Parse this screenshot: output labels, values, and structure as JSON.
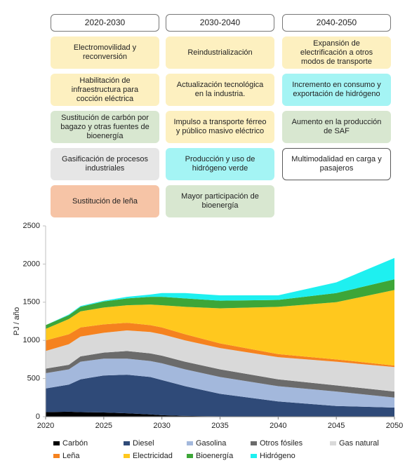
{
  "timeline": {
    "columns": [
      {
        "period": "2020-2030",
        "items": [
          {
            "text": "Electromovilidad y reconversión",
            "color": "#fdf0c0"
          },
          {
            "text": "Habilitación de infraestructura para cocción eléctrica",
            "color": "#fdf0c0"
          },
          {
            "text": "Sustitución de carbón por bagazo y otras fuentes de bioenergía",
            "color": "#d8e7d0"
          },
          {
            "text": "Gasificación de procesos industriales",
            "color": "#e6e6e6"
          },
          {
            "text": "Sustitución de leña",
            "color": "#f6c4a6"
          }
        ]
      },
      {
        "period": "2030-2040",
        "items": [
          {
            "text": "Reindustrialización",
            "color": "#fdf0c0"
          },
          {
            "text": "Actualización tecnológica en la industria.",
            "color": "#fdf0c0"
          },
          {
            "text": "Impulso a transporte férreo y público masivo eléctrico",
            "color": "#fdf0c0"
          },
          {
            "text": "Producción y uso de hidrógeno verde",
            "color": "#a4f4f4"
          },
          {
            "text": "Mayor participación de bioenergía",
            "color": "#d8e7d0"
          }
        ]
      },
      {
        "period": "2040-2050",
        "items": [
          {
            "text": "Expansión de electrificación a otros modos de transporte",
            "color": "#fdf0c0"
          },
          {
            "text": "Incremento en consumo y exportación de hidrógeno",
            "color": "#a4f4f4"
          },
          {
            "text": "Aumento en la producción de SAF",
            "color": "#d8e7d0"
          },
          {
            "text": "Multimodalidad en carga y pasajeros",
            "color": "#ffffff",
            "border": "#595959"
          }
        ]
      }
    ]
  },
  "chart_data": {
    "type": "stacked_area",
    "y_label": "PJ / año",
    "x": [
      2020,
      2022,
      2023,
      2025,
      2027,
      2029,
      2030,
      2032,
      2035,
      2040,
      2045,
      2050
    ],
    "xlim": [
      2020,
      2050
    ],
    "xticks": [
      2020,
      2025,
      2030,
      2035,
      2040,
      2045,
      2050
    ],
    "ylim": [
      0,
      2500
    ],
    "yticks": [
      0,
      500,
      1000,
      1500,
      2000,
      2500
    ],
    "series": [
      {
        "name": "Carbón",
        "color": "#000000",
        "values": [
          60,
          65,
          60,
          55,
          45,
          30,
          20,
          10,
          5,
          0,
          0,
          0
        ]
      },
      {
        "name": "Diesel",
        "color": "#2f4a78",
        "values": [
          310,
          355,
          430,
          485,
          505,
          490,
          460,
          390,
          295,
          200,
          140,
          120
        ]
      },
      {
        "name": "Gasolina",
        "color": "#a3b8dc",
        "values": [
          200,
          200,
          230,
          220,
          210,
          210,
          220,
          220,
          220,
          200,
          190,
          130
        ]
      },
      {
        "name": "Otros fósiles",
        "color": "#6b6b6b",
        "values": [
          60,
          60,
          70,
          80,
          100,
          100,
          100,
          100,
          100,
          90,
          80,
          80
        ]
      },
      {
        "name": "Gas natural",
        "color": "#d9d9d9",
        "values": [
          230,
          270,
          260,
          260,
          270,
          280,
          280,
          280,
          280,
          290,
          310,
          320
        ]
      },
      {
        "name": "Leña",
        "color": "#f5821f",
        "values": [
          140,
          130,
          120,
          110,
          100,
          90,
          90,
          80,
          60,
          40,
          30,
          20
        ]
      },
      {
        "name": "Electricidad",
        "color": "#ffc81e",
        "values": [
          150,
          200,
          210,
          220,
          230,
          270,
          290,
          360,
          460,
          620,
          750,
          990
        ]
      },
      {
        "name": "Bioenergía",
        "color": "#3da638",
        "values": [
          50,
          50,
          60,
          80,
          90,
          100,
          110,
          110,
          100,
          90,
          120,
          140
        ]
      },
      {
        "name": "Hidrógeno",
        "color": "#1ef0f0",
        "values": [
          0,
          10,
          10,
          10,
          20,
          30,
          50,
          70,
          70,
          60,
          140,
          280
        ]
      }
    ]
  }
}
